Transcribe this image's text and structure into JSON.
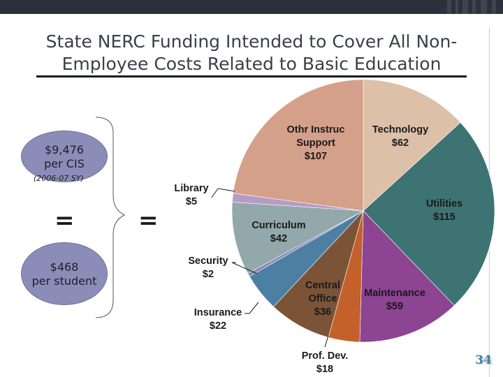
{
  "slide": {
    "title_line1": "State NERC Funding Intended to Cover All Non-",
    "title_line2": "Employee Costs Related to Basic Education",
    "page_number": "34"
  },
  "left_panel": {
    "top_oval_amount": "$9,476",
    "top_oval_unit": "per CIS",
    "school_year": "(2006-07 SY)",
    "equals": "=",
    "bottom_oval_amount": "$468",
    "bottom_oval_unit": "per student",
    "equals_mid": "="
  },
  "colors": {
    "oval_fill": "#8b8db8",
    "topbar": "#2c323a"
  },
  "chart_data": {
    "type": "pie",
    "title": "",
    "series": [
      {
        "label_lines": [
          "Technology",
          "$62"
        ],
        "value": 62,
        "color": "#dcc0a8"
      },
      {
        "label_lines": [
          "Utilities",
          "$115"
        ],
        "value": 115,
        "color": "#3d7373"
      },
      {
        "label_lines": [
          "Maintenance",
          "$59"
        ],
        "value": 59,
        "color": "#8d4493"
      },
      {
        "label_lines": [
          "Prof. Dev.",
          "$18"
        ],
        "value": 18,
        "color": "#c4602a"
      },
      {
        "label_lines": [
          "Central",
          "Office",
          "$36"
        ],
        "value": 36,
        "color": "#7b5438"
      },
      {
        "label_lines": [
          "Insurance",
          "$22"
        ],
        "value": 22,
        "color": "#4d7fa3"
      },
      {
        "label_lines": [
          "Security",
          "$2"
        ],
        "value": 2,
        "color": "#8a8ab4"
      },
      {
        "label_lines": [
          "Curriculum",
          "$42"
        ],
        "value": 42,
        "color": "#93a8ab"
      },
      {
        "label_lines": [
          "Library",
          "$5"
        ],
        "value": 5,
        "color": "#b79ac6"
      },
      {
        "label_lines": [
          "Othr Instruc",
          "Support",
          "$107"
        ],
        "value": 107,
        "color": "#d5a08a"
      }
    ]
  }
}
